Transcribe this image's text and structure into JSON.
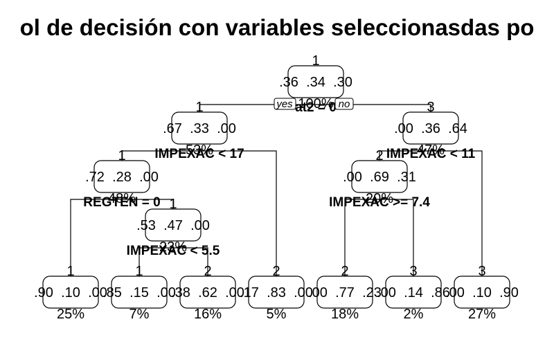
{
  "title": "ol de decisión con variables seleccionasdas po",
  "yes_label": "yes",
  "no_label": "no",
  "nodes": [
    {
      "id": "root",
      "class": "1",
      "probs": [
        ".36",
        ".34",
        ".30"
      ],
      "pct": "100%",
      "split": "at2 = 0"
    },
    {
      "id": "n2",
      "class": "1",
      "probs": [
        ".67",
        ".33",
        ".00"
      ],
      "pct": "53%",
      "split": "IMPEXAC < 17"
    },
    {
      "id": "n3",
      "class": "3",
      "probs": [
        ".00",
        ".36",
        ".64"
      ],
      "pct": "47%",
      "split": "IMPEXAC < 11"
    },
    {
      "id": "n4",
      "class": "1",
      "probs": [
        ".72",
        ".28",
        ".00"
      ],
      "pct": "48%",
      "split": "REGTEN = 0"
    },
    {
      "id": "n6",
      "class": "2",
      "probs": [
        ".00",
        ".69",
        ".31"
      ],
      "pct": "20%",
      "split": "IMPEXAC >= 7.4"
    },
    {
      "id": "n9",
      "class": "1",
      "probs": [
        ".53",
        ".47",
        ".00"
      ],
      "pct": "23%",
      "split": "IMPEXAC < 5.5"
    },
    {
      "id": "L1",
      "class": "1",
      "probs": [
        ".90",
        ".10",
        ".00"
      ],
      "pct": "25%"
    },
    {
      "id": "L2",
      "class": "1",
      "probs": [
        ".85",
        ".15",
        ".00"
      ],
      "pct": "7%"
    },
    {
      "id": "L3",
      "class": "2",
      "probs": [
        ".38",
        ".62",
        ".00"
      ],
      "pct": "16%"
    },
    {
      "id": "L4",
      "class": "2",
      "probs": [
        ".17",
        ".83",
        ".00"
      ],
      "pct": "5%"
    },
    {
      "id": "L5",
      "class": "2",
      "probs": [
        ".00",
        ".77",
        ".23"
      ],
      "pct": "18%"
    },
    {
      "id": "L6",
      "class": "3",
      "probs": [
        ".00",
        ".14",
        ".86"
      ],
      "pct": "2%"
    },
    {
      "id": "L7",
      "class": "3",
      "probs": [
        ".00",
        ".10",
        ".90"
      ],
      "pct": "27%"
    }
  ],
  "edges": [
    [
      "root",
      "n2"
    ],
    [
      "root",
      "n3"
    ],
    [
      "n2",
      "n4"
    ],
    [
      "n2",
      "L4"
    ],
    [
      "n3",
      "n6"
    ],
    [
      "n3",
      "L7"
    ],
    [
      "n4",
      "L1"
    ],
    [
      "n4",
      "n9"
    ],
    [
      "n9",
      "L2"
    ],
    [
      "n9",
      "L3"
    ],
    [
      "n6",
      "L5"
    ],
    [
      "n6",
      "L6"
    ]
  ]
}
